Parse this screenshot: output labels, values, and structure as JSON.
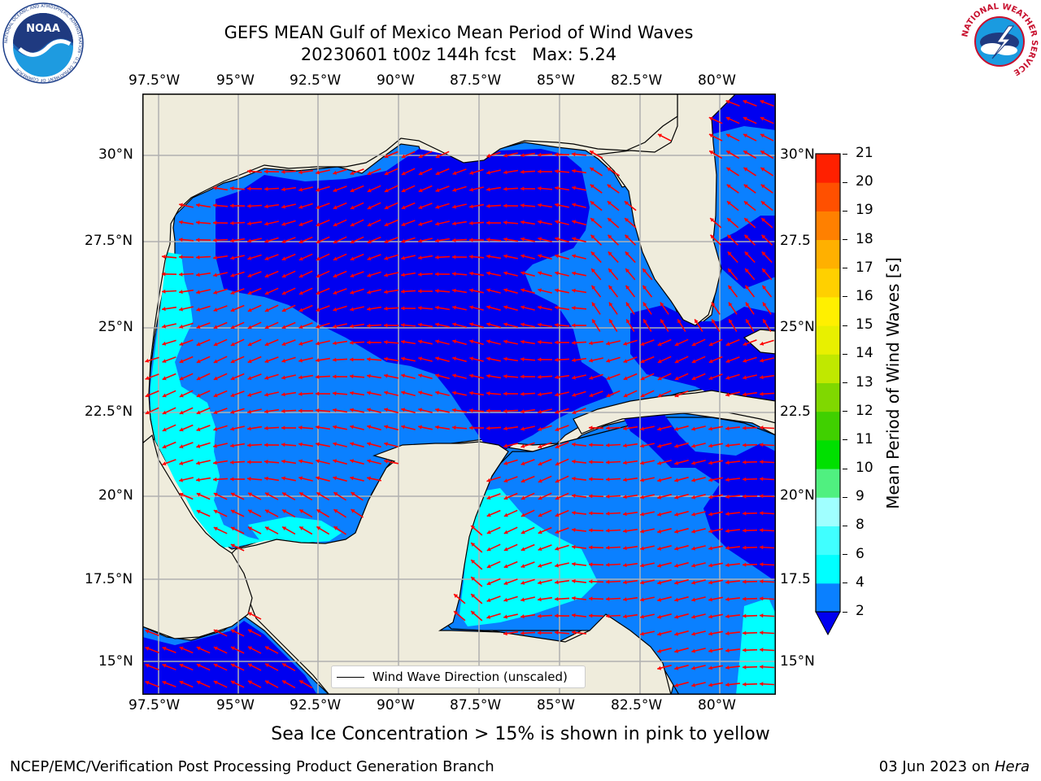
{
  "title": {
    "line1": "GEFS MEAN Gulf of Mexico Mean Period of Wind Waves",
    "line2": "20230601 t00z 144h fcst   Max: 5.24"
  },
  "map": {
    "lon_labels": [
      "97.5°W",
      "95°W",
      "92.5°W",
      "90°W",
      "87.5°W",
      "85°W",
      "82.5°W",
      "80°W"
    ],
    "lat_labels_left": [
      "30°N",
      "27.5°N",
      "25°N",
      "22.5°N",
      "20°N",
      "17.5°N",
      "15°N"
    ],
    "lat_labels_right": [
      "30°N",
      "27.5",
      "25°N",
      "22.5",
      "20°N",
      "17.5",
      "15°N"
    ],
    "legend_label": "Wind Wave Direction (unscaled)",
    "colors": {
      "land": "#efecdc",
      "grid": "#b0b0b0",
      "arrow": "#ff0000",
      "band_2_4": "#0a80ff",
      "band_under_2": "#0000f0",
      "band_4_6": "#00ffff"
    }
  },
  "colorbar": {
    "label": "Mean Period of Wind Waves [s]",
    "ticks": [
      "2",
      "4",
      "6",
      "8",
      "9",
      "10",
      "11",
      "12",
      "13",
      "14",
      "15",
      "16",
      "17",
      "18",
      "19",
      "20",
      "21"
    ],
    "colors": [
      "#0a80ff",
      "#00ffff",
      "#40ffff",
      "#a0ffff",
      "#50f080",
      "#00e000",
      "#40d000",
      "#80d800",
      "#c0e800",
      "#e8f000",
      "#fff000",
      "#ffd000",
      "#ffb000",
      "#ff8000",
      "#ff5000",
      "#ff2000"
    ],
    "extend_color": "#0000f0"
  },
  "footer": {
    "note": "Sea Ice Concentration > 15% is shown in pink to yellow",
    "left": "NCEP/EMC/Verification Post Processing Product Generation Branch",
    "right_date": "03 Jun 2023 on ",
    "right_machine": "Hera"
  },
  "logos": {
    "left": "NOAA",
    "left_ring": "NATIONAL OCEANIC AND ATMOSPHERIC ADMINISTRATION · U.S. DEPARTMENT OF COMMERCE",
    "right_ring": "NATIONAL WEATHER SERVICE"
  }
}
